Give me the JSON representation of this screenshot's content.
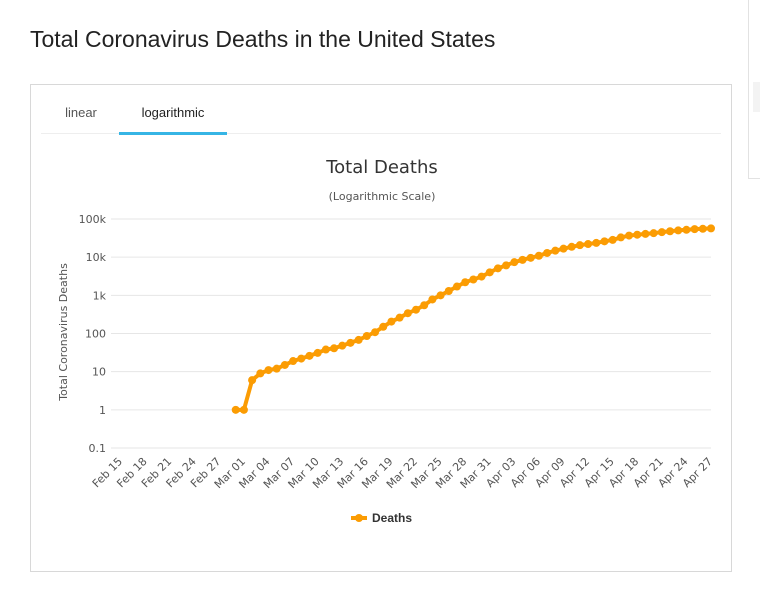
{
  "page": {
    "title": "Total Coronavirus Deaths in the United States"
  },
  "tabs": [
    {
      "label": "linear",
      "active": false
    },
    {
      "label": "logarithmic",
      "active": true
    }
  ],
  "colors": {
    "series": "#fb9c03",
    "tab_accent": "#36b5e5",
    "grid": "#e6e6e6"
  },
  "chart_data": {
    "type": "line",
    "title": "Total Deaths",
    "subtitle": "(Logarithmic Scale)",
    "ylabel": "Total Coronavirus Deaths",
    "xlabel": "",
    "y_scale": "log",
    "ylim": [
      0.1,
      100000
    ],
    "y_ticks": [
      "100k",
      "10k",
      "1k",
      "100",
      "10",
      "1",
      "0.1"
    ],
    "y_tick_values": [
      100000,
      10000,
      1000,
      100,
      10,
      1,
      0.1
    ],
    "x": [
      "Feb 15",
      "Feb 16",
      "Feb 17",
      "Feb 18",
      "Feb 19",
      "Feb 20",
      "Feb 21",
      "Feb 22",
      "Feb 23",
      "Feb 24",
      "Feb 25",
      "Feb 26",
      "Feb 27",
      "Feb 28",
      "Feb 29",
      "Mar 01",
      "Mar 02",
      "Mar 03",
      "Mar 04",
      "Mar 05",
      "Mar 06",
      "Mar 07",
      "Mar 08",
      "Mar 09",
      "Mar 10",
      "Mar 11",
      "Mar 12",
      "Mar 13",
      "Mar 14",
      "Mar 15",
      "Mar 16",
      "Mar 17",
      "Mar 18",
      "Mar 19",
      "Mar 20",
      "Mar 21",
      "Mar 22",
      "Mar 23",
      "Mar 24",
      "Mar 25",
      "Mar 26",
      "Mar 27",
      "Mar 28",
      "Mar 29",
      "Mar 30",
      "Mar 31",
      "Apr 01",
      "Apr 02",
      "Apr 03",
      "Apr 04",
      "Apr 05",
      "Apr 06",
      "Apr 07",
      "Apr 08",
      "Apr 09",
      "Apr 10",
      "Apr 11",
      "Apr 12",
      "Apr 13",
      "Apr 14",
      "Apr 15",
      "Apr 16",
      "Apr 17",
      "Apr 18",
      "Apr 19",
      "Apr 20",
      "Apr 21",
      "Apr 22",
      "Apr 23",
      "Apr 24",
      "Apr 25",
      "Apr 26",
      "Apr 27"
    ],
    "x_tick_labels": [
      "Feb 15",
      "Feb 18",
      "Feb 21",
      "Feb 24",
      "Feb 27",
      "Mar 01",
      "Mar 04",
      "Mar 07",
      "Mar 10",
      "Mar 13",
      "Mar 16",
      "Mar 19",
      "Mar 22",
      "Mar 25",
      "Mar 28",
      "Mar 31",
      "Apr 03",
      "Apr 06",
      "Apr 09",
      "Apr 12",
      "Apr 15",
      "Apr 18",
      "Apr 21",
      "Apr 24",
      "Apr 27"
    ],
    "series": [
      {
        "name": "Deaths",
        "values": [
          null,
          null,
          null,
          null,
          null,
          null,
          null,
          null,
          null,
          null,
          null,
          null,
          null,
          null,
          1,
          1,
          6,
          9,
          11,
          12,
          15,
          19,
          22,
          26,
          31,
          38,
          41,
          48,
          57,
          68,
          86,
          108,
          150,
          205,
          260,
          340,
          420,
          550,
          780,
          1000,
          1300,
          1700,
          2200,
          2600,
          3100,
          4000,
          5100,
          6100,
          7400,
          8500,
          9600,
          10900,
          12900,
          14800,
          16700,
          18700,
          20600,
          22100,
          23600,
          26000,
          28300,
          32900,
          36800,
          38800,
          40700,
          42500,
          45200,
          47800,
          50200,
          52200,
          54300,
          55400,
          56800
        ],
        "color": "#fb9c03"
      }
    ],
    "legend": {
      "label": "Deaths",
      "position": "bottom-center"
    }
  }
}
